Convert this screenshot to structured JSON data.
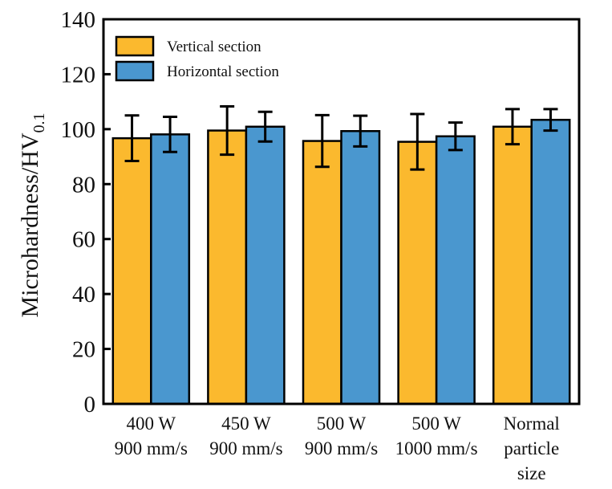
{
  "chart_data": {
    "type": "bar",
    "title": "",
    "xlabel": "",
    "ylabel": "Microhardness/HV",
    "ylabel_subscript": "0.1",
    "ylim": [
      0,
      140
    ],
    "yticks": [
      0,
      20,
      40,
      60,
      80,
      100,
      120,
      140
    ],
    "grid": false,
    "legend_position": "top-left",
    "categories": [
      [
        "400 W",
        "900 mm/s"
      ],
      [
        "450 W",
        "900 mm/s"
      ],
      [
        "500 W",
        "900 mm/s"
      ],
      [
        "500 W",
        "1000 mm/s"
      ],
      [
        "Normal",
        "particle",
        "size"
      ]
    ],
    "series": [
      {
        "name": "Vertical section",
        "color": "#FBB92E",
        "values": [
          96.7,
          99.5,
          95.7,
          95.4,
          100.9
        ],
        "errors": [
          8.3,
          8.8,
          9.4,
          10.1,
          6.4
        ]
      },
      {
        "name": "Horizontal section",
        "color": "#4A97CF",
        "values": [
          98.1,
          100.9,
          99.3,
          97.4,
          103.4
        ],
        "errors": [
          6.4,
          5.4,
          5.6,
          5.0,
          3.9
        ]
      }
    ]
  }
}
